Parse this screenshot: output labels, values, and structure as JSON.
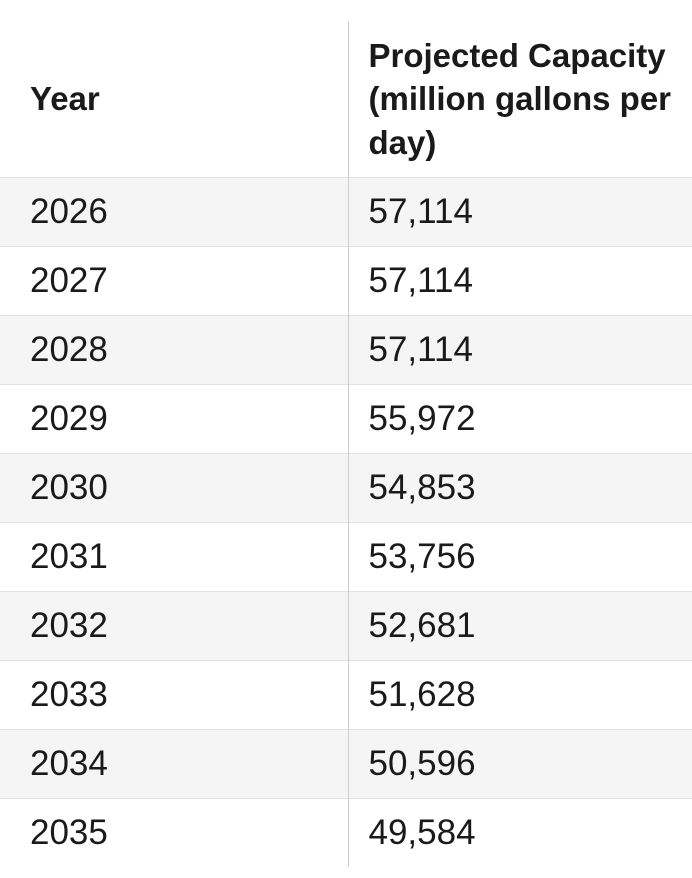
{
  "table": {
    "columns": [
      {
        "label": "Year"
      },
      {
        "label": "Projected Capacity (million gallons per day)"
      }
    ],
    "rows": [
      {
        "year": "2026",
        "capacity": "57,114"
      },
      {
        "year": "2027",
        "capacity": "57,114"
      },
      {
        "year": "2028",
        "capacity": "57,114"
      },
      {
        "year": "2029",
        "capacity": "55,972"
      },
      {
        "year": "2030",
        "capacity": "54,853"
      },
      {
        "year": "2031",
        "capacity": "53,756"
      },
      {
        "year": "2032",
        "capacity": "52,681"
      },
      {
        "year": "2033",
        "capacity": "51,628"
      },
      {
        "year": "2034",
        "capacity": "50,596"
      },
      {
        "year": "2035",
        "capacity": "49,584"
      }
    ]
  },
  "chart_data": {
    "type": "table",
    "columns": [
      "Year",
      "Projected Capacity (million gallons per day)"
    ],
    "rows": [
      [
        2026,
        57114
      ],
      [
        2027,
        57114
      ],
      [
        2028,
        57114
      ],
      [
        2029,
        55972
      ],
      [
        2030,
        54853
      ],
      [
        2031,
        53756
      ],
      [
        2032,
        52681
      ],
      [
        2033,
        51628
      ],
      [
        2034,
        50596
      ],
      [
        2035,
        49584
      ]
    ]
  },
  "colors": {
    "text": "#1a1a1a",
    "background": "#ffffff",
    "row_shaded": "#f5f5f6",
    "row_border": "#e2e2e2",
    "column_divider": "#cccccc"
  }
}
